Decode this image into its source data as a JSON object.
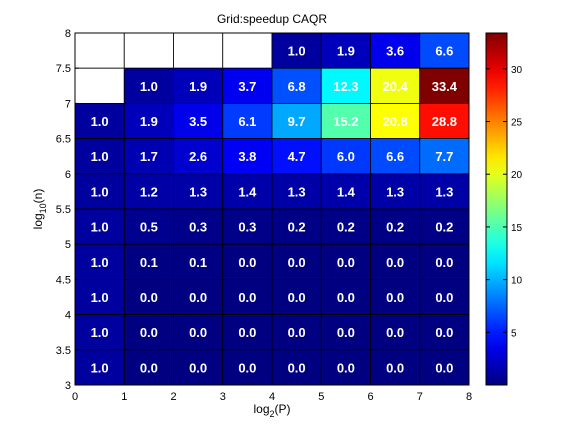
{
  "chart_data": {
    "type": "heatmap",
    "title": "Grid:speedup CAQR",
    "xlabel": "log",
    "xlabel_sub": "2",
    "xlabel_tail": "(P)",
    "ylabel": "log",
    "ylabel_sub": "10",
    "ylabel_tail": "(n)",
    "xlim": [
      0,
      8
    ],
    "ylim": [
      3,
      8
    ],
    "xticks": [
      "0",
      "1",
      "2",
      "3",
      "4",
      "5",
      "6",
      "7",
      "8"
    ],
    "yticks": [
      "3",
      "3.5",
      "4",
      "4.5",
      "5",
      "5.5",
      "6",
      "6.5",
      "7",
      "7.5",
      "8"
    ],
    "x_columns": [
      0,
      1,
      2,
      3,
      4,
      5,
      6,
      7
    ],
    "y_rows": [
      7.75,
      7.25,
      6.75,
      6.25,
      5.75,
      5.25,
      4.75,
      4.25,
      3.75,
      3.25
    ],
    "values": [
      [
        null,
        null,
        null,
        null,
        1.0,
        1.9,
        3.6,
        6.6
      ],
      [
        null,
        1.0,
        1.9,
        3.7,
        6.8,
        12.3,
        20.4,
        33.4
      ],
      [
        1.0,
        1.9,
        3.5,
        6.1,
        9.7,
        15.2,
        20.8,
        28.8
      ],
      [
        1.0,
        1.7,
        2.6,
        3.8,
        4.7,
        6.0,
        6.6,
        7.7
      ],
      [
        1.0,
        1.2,
        1.3,
        1.4,
        1.3,
        1.4,
        1.3,
        1.3
      ],
      [
        1.0,
        0.5,
        0.3,
        0.3,
        0.2,
        0.2,
        0.2,
        0.2
      ],
      [
        1.0,
        0.1,
        0.1,
        0.0,
        0.0,
        0.0,
        0.0,
        0.0
      ],
      [
        1.0,
        0.0,
        0.0,
        0.0,
        0.0,
        0.0,
        0.0,
        0.0
      ],
      [
        1.0,
        0.0,
        0.0,
        0.0,
        0.0,
        0.0,
        0.0,
        0.0
      ],
      [
        1.0,
        0.0,
        0.0,
        0.0,
        0.0,
        0.0,
        0.0,
        0.0
      ]
    ],
    "colormap": "jet",
    "clim": [
      0,
      33.4
    ],
    "colorbar_ticks": [
      "5",
      "10",
      "15",
      "20",
      "25",
      "30"
    ],
    "colorbar_tick_values": [
      5,
      10,
      15,
      20,
      25,
      30
    ],
    "missing_color": "#ffffff",
    "label_color": "#ffffff"
  }
}
